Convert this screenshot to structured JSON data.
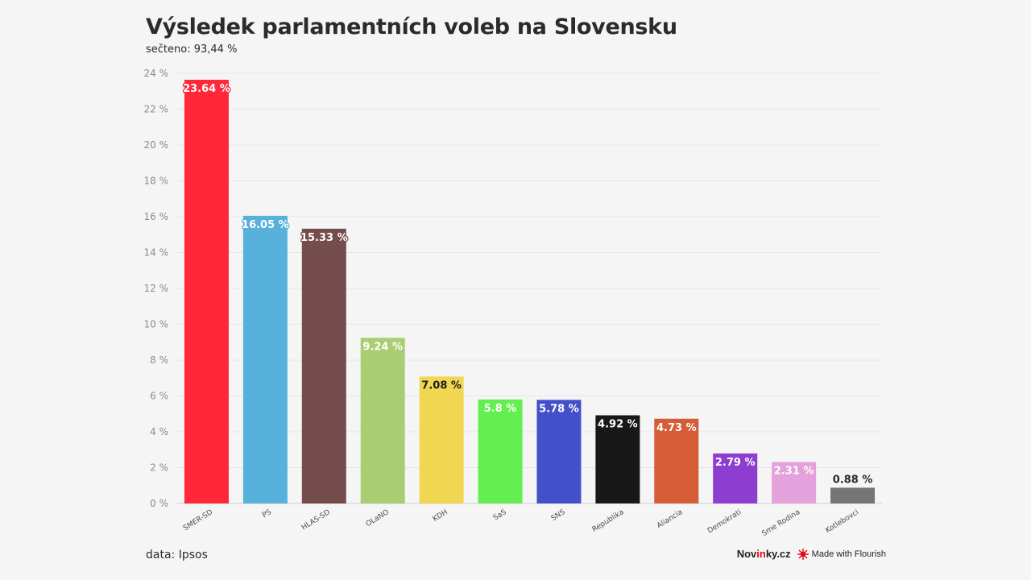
{
  "header": {
    "title": "Výsledek parlamentních voleb na Slovensku",
    "subtitle": "sečteno: 93,44 %"
  },
  "footer": {
    "source": "data: Ipsos",
    "brand_prefix": "Nov",
    "brand_accent": "in",
    "brand_suffix": "ky.cz",
    "made_with": "Made with Flourish"
  },
  "colors": {
    "grid": "#e6e6e6",
    "tick_text": "#8a8a8a",
    "brand_accent": "#e30613"
  },
  "chart_data": {
    "type": "bar",
    "categories": [
      "SMER-SD",
      "PS",
      "HLAS-SD",
      "OLaNO",
      "KDH",
      "SaS",
      "SNS",
      "Republika",
      "Aliancia",
      "Demokrati",
      "Sme Rodina",
      "Kotlebovci"
    ],
    "values": [
      23.64,
      16.05,
      15.33,
      9.24,
      7.08,
      5.8,
      5.78,
      4.92,
      4.73,
      2.79,
      2.31,
      0.88
    ],
    "value_labels": [
      "23.64 %",
      "16.05 %",
      "15.33 %",
      "9.24 %",
      "7.08 %",
      "5.8 %",
      "5.78 %",
      "4.92 %",
      "4.73 %",
      "2.79 %",
      "2.31 %",
      "0.88 %"
    ],
    "colors": [
      "#fe2838",
      "#57b1da",
      "#744c4c",
      "#a9cd72",
      "#f0d651",
      "#62ef4f",
      "#4450c9",
      "#181818",
      "#d55c37",
      "#8d3dcf",
      "#e4a1db",
      "#757575"
    ],
    "ylim": [
      0,
      24
    ],
    "yticks": [
      0,
      2,
      4,
      6,
      8,
      10,
      12,
      14,
      16,
      18,
      20,
      22,
      24
    ],
    "ytick_labels": [
      "0 %",
      "2 %",
      "4 %",
      "6 %",
      "8 %",
      "10 %",
      "12 %",
      "14 %",
      "16 %",
      "18 %",
      "20 %",
      "22 %",
      "24 %"
    ],
    "grid": true,
    "title": "Výsledek parlamentních voleb na Slovensku",
    "xlabel": "",
    "ylabel": ""
  }
}
